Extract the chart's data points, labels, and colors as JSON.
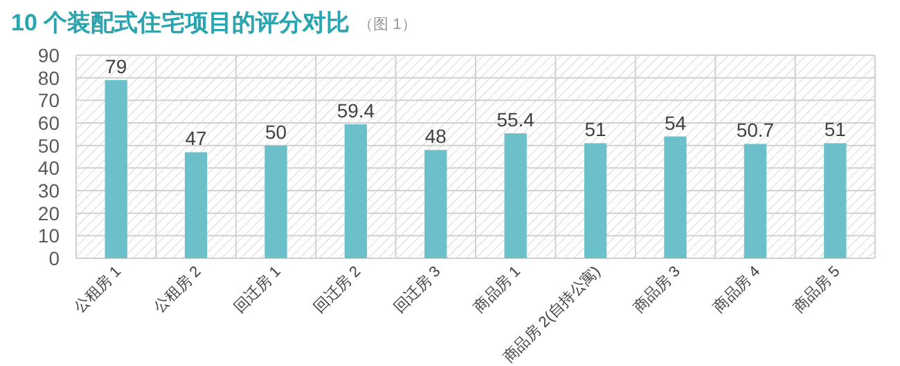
{
  "chart_data": {
    "type": "bar",
    "title": "10 个装配式住宅项目的评分对比",
    "subtitle": "（图 1）",
    "categories": [
      "公租房 1",
      "公租房 2",
      "回迁房 1",
      "回迁房 2",
      "回迁房 3",
      "商品房 1",
      "商品房 2(自持公寓)",
      "商品房 3",
      "商品房 4",
      "商品房 5"
    ],
    "values": [
      79,
      47,
      50,
      59.4,
      48,
      55.4,
      51,
      54,
      50.7,
      51
    ],
    "color": "#6cc0c9",
    "ylim": [
      0,
      90
    ],
    "yticks": [
      0,
      10,
      20,
      30,
      40,
      50,
      60,
      70,
      80,
      90
    ],
    "grid": true,
    "data_labels": true
  }
}
